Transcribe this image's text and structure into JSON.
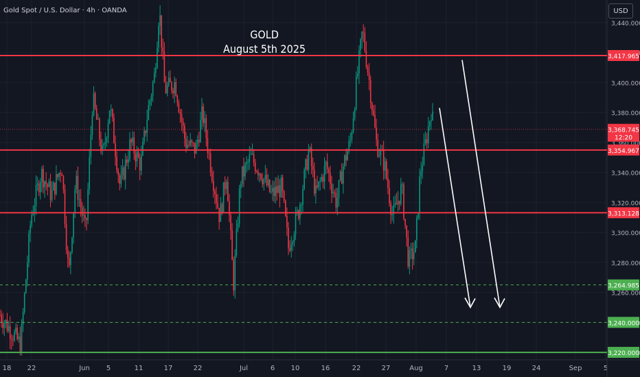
{
  "header": {
    "symbol": "Gold Spot / U.S. Dollar · 4h · OANDA",
    "currency": "USD"
  },
  "annotation": {
    "title_line1": "GOLD",
    "title_line2": "August 5th 2025"
  },
  "colors": {
    "background": "#131722",
    "up": "#089981",
    "down": "#f23645",
    "level": "#f23645",
    "support": "#4caf50",
    "arrow": "#ffffff"
  },
  "chart_data": {
    "type": "candlestick",
    "ylim": [
      3215,
      3455
    ],
    "price_ticks": [
      3220,
      3240,
      3260,
      3280,
      3300,
      3320,
      3340,
      3360,
      3380,
      3400,
      3420,
      3440
    ],
    "price_tick_labels": [
      "3,220.000",
      "3,240.000",
      "3,260.000",
      "3,280.000",
      "3,300.000",
      "3,320.000",
      "3,340.000",
      "3,360.000",
      "3,380.000",
      "3,400.000",
      "3,420.000",
      "3,440.000"
    ],
    "date_labels": [
      "18",
      "22",
      "Jun",
      "5",
      "11",
      "17",
      "22",
      "Jul",
      "6",
      "10",
      "16",
      "22",
      "27",
      "Aug",
      "7",
      "13",
      "19",
      "24",
      "Sep",
      "5"
    ],
    "path": [
      [
        0,
        3245
      ],
      [
        30,
        3225
      ],
      [
        45,
        3310
      ],
      [
        60,
        3340
      ],
      [
        75,
        3325
      ],
      [
        90,
        3345
      ],
      [
        100,
        3270
      ],
      [
        110,
        3335
      ],
      [
        125,
        3300
      ],
      [
        135,
        3390
      ],
      [
        150,
        3350
      ],
      [
        160,
        3385
      ],
      [
        175,
        3330
      ],
      [
        190,
        3360
      ],
      [
        205,
        3345
      ],
      [
        215,
        3380
      ],
      [
        225,
        3405
      ],
      [
        232,
        3450
      ],
      [
        240,
        3395
      ],
      [
        255,
        3400
      ],
      [
        270,
        3360
      ],
      [
        285,
        3355
      ],
      [
        295,
        3380
      ],
      [
        305,
        3350
      ],
      [
        320,
        3310
      ],
      [
        330,
        3340
      ],
      [
        340,
        3265
      ],
      [
        350,
        3335
      ],
      [
        365,
        3350
      ],
      [
        380,
        3340
      ],
      [
        395,
        3325
      ],
      [
        410,
        3330
      ],
      [
        420,
        3290
      ],
      [
        435,
        3315
      ],
      [
        450,
        3355
      ],
      [
        460,
        3325
      ],
      [
        475,
        3345
      ],
      [
        490,
        3320
      ],
      [
        500,
        3345
      ],
      [
        510,
        3360
      ],
      [
        518,
        3395
      ],
      [
        528,
        3435
      ],
      [
        538,
        3400
      ],
      [
        548,
        3360
      ],
      [
        560,
        3345
      ],
      [
        572,
        3310
      ],
      [
        585,
        3330
      ],
      [
        595,
        3280
      ],
      [
        605,
        3290
      ],
      [
        612,
        3340
      ],
      [
        620,
        3360
      ],
      [
        628,
        3382
      ],
      [
        632,
        3368
      ]
    ],
    "series": [
      {
        "name": "GOLD",
        "last": 3368.745,
        "label": "3,368.745",
        "countdown": "12:20"
      }
    ],
    "levels": [
      {
        "price": 3417.965,
        "label": "3,417.965",
        "style": "solid",
        "color": "#f23645"
      },
      {
        "price": 3354.967,
        "label": "3,354.967",
        "style": "solid",
        "color": "#f23645"
      },
      {
        "price": 3313.128,
        "label": "3,313.128",
        "style": "solid",
        "color": "#f23645"
      },
      {
        "price": 3264.985,
        "label": "3,264.985",
        "style": "dashed",
        "color": "#4caf50"
      },
      {
        "price": 3240.0,
        "label": "3,240.000",
        "style": "dashed",
        "color": "#4caf50"
      },
      {
        "price": 3220.0,
        "label": "3,220.000",
        "style": "solid",
        "color": "#4caf50"
      }
    ],
    "arrows": [
      {
        "from_price": 3383,
        "to_price": 3250
      },
      {
        "from_price": 3415,
        "to_price": 3250
      }
    ],
    "grid": true
  }
}
